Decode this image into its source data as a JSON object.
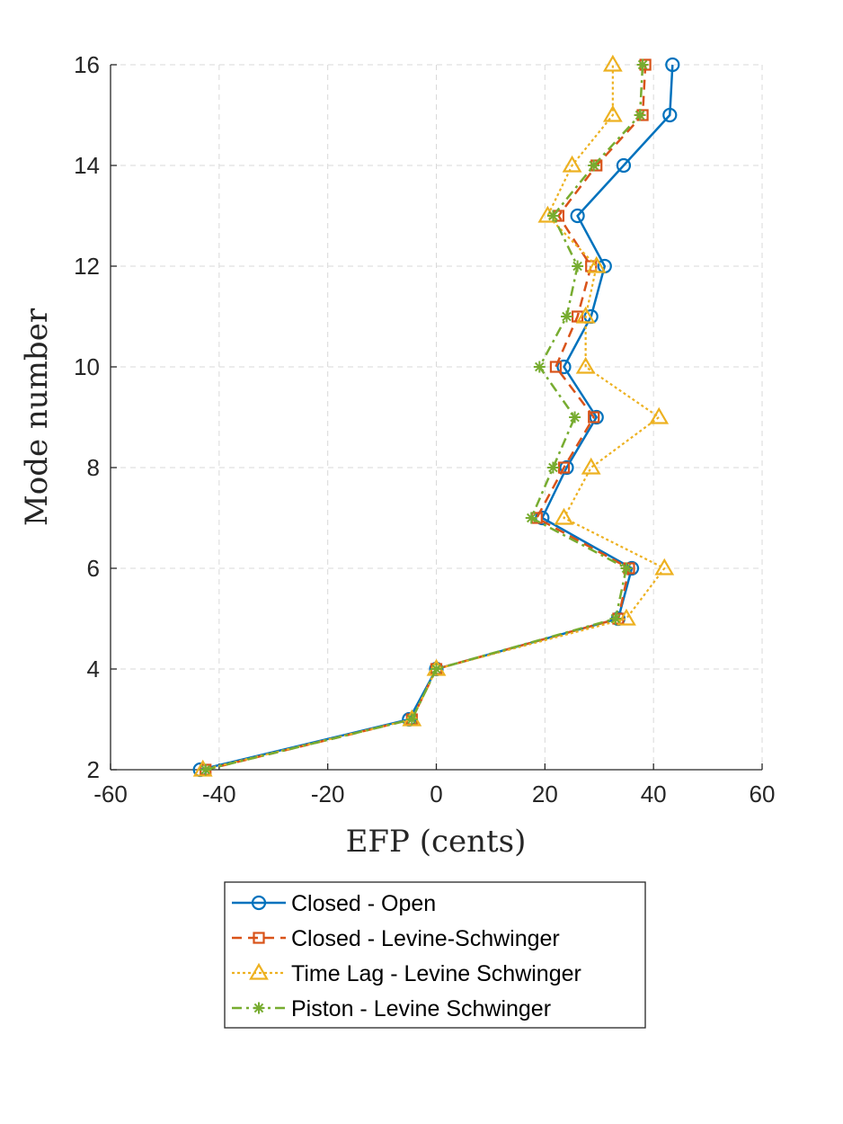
{
  "chart_data": {
    "type": "line",
    "title": "",
    "xlabel": "EFP (cents)",
    "ylabel": "Mode number",
    "xlim": [
      -60,
      60
    ],
    "ylim": [
      2,
      16
    ],
    "xticks": [
      -60,
      -40,
      -20,
      0,
      20,
      40,
      60
    ],
    "yticks": [
      2,
      4,
      6,
      8,
      10,
      12,
      14,
      16
    ],
    "grid": true,
    "legend_placement": "below plot",
    "y": [
      2,
      3,
      4,
      5,
      6,
      7,
      8,
      9,
      10,
      11,
      12,
      13,
      14,
      15,
      16
    ],
    "series": [
      {
        "name": "Closed - Open",
        "color": "#0072BD",
        "line_style": "solid",
        "marker": "circle",
        "x": [
          -43.5,
          -5,
          0,
          33.5,
          36,
          19.5,
          24,
          29.5,
          23.5,
          28.5,
          31,
          26,
          34.5,
          43,
          43.5
        ]
      },
      {
        "name": "Closed - Levine-Schwinger",
        "color": "#D95319",
        "line_style": "dashed",
        "marker": "square",
        "x": [
          -42.5,
          -4.5,
          0,
          33.5,
          35.5,
          18.5,
          23.5,
          29,
          22,
          26,
          28.5,
          22.5,
          29.5,
          38,
          38.5
        ]
      },
      {
        "name": "Time Lag - Levine Schwinger",
        "color": "#EDB120",
        "line_style": "dotted",
        "marker": "triangle",
        "x": [
          -43,
          -4.5,
          0,
          35,
          42,
          23.5,
          28.5,
          41,
          27.5,
          27.5,
          29.5,
          20.5,
          25,
          32.5,
          32.5
        ]
      },
      {
        "name": "Piston - Levine Schwinger",
        "color": "#77AC30",
        "line_style": "dashdot",
        "marker": "asterisk",
        "x": [
          -42.5,
          -4.5,
          0,
          33,
          35,
          17.5,
          21.5,
          25.5,
          19,
          24,
          26,
          21.5,
          29,
          37.5,
          38
        ]
      }
    ]
  }
}
